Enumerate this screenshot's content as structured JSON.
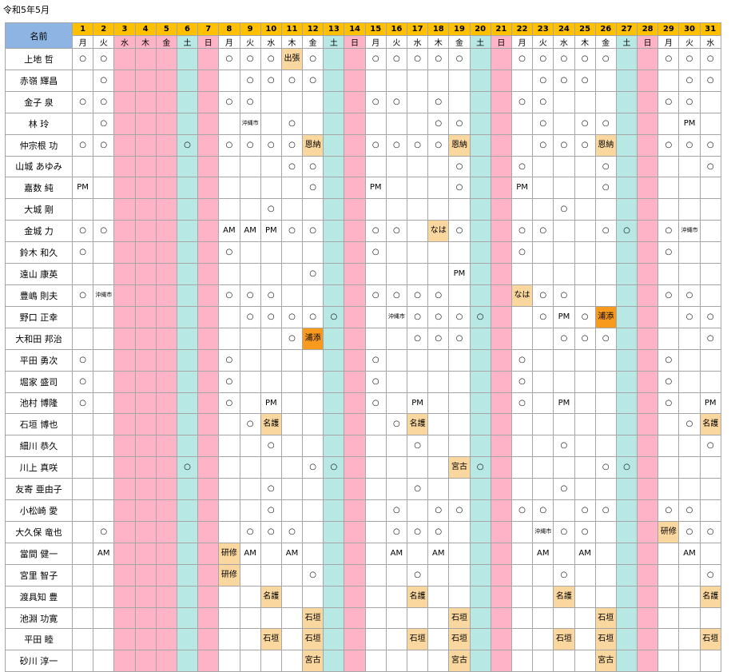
{
  "title": "令和5年5月",
  "header": {
    "name_label": "名前"
  },
  "days": [
    {
      "d": "1",
      "w": "月",
      "t": "day"
    },
    {
      "d": "2",
      "w": "火",
      "t": "day"
    },
    {
      "d": "3",
      "w": "水",
      "t": "hol"
    },
    {
      "d": "4",
      "w": "木",
      "t": "hol"
    },
    {
      "d": "5",
      "w": "金",
      "t": "hol"
    },
    {
      "d": "6",
      "w": "土",
      "t": "sat"
    },
    {
      "d": "7",
      "w": "日",
      "t": "sun"
    },
    {
      "d": "8",
      "w": "月",
      "t": "day"
    },
    {
      "d": "9",
      "w": "火",
      "t": "day"
    },
    {
      "d": "10",
      "w": "水",
      "t": "day"
    },
    {
      "d": "11",
      "w": "木",
      "t": "day"
    },
    {
      "d": "12",
      "w": "金",
      "t": "day"
    },
    {
      "d": "13",
      "w": "土",
      "t": "sat"
    },
    {
      "d": "14",
      "w": "日",
      "t": "sun"
    },
    {
      "d": "15",
      "w": "月",
      "t": "day"
    },
    {
      "d": "16",
      "w": "火",
      "t": "day"
    },
    {
      "d": "17",
      "w": "水",
      "t": "day"
    },
    {
      "d": "18",
      "w": "木",
      "t": "day"
    },
    {
      "d": "19",
      "w": "金",
      "t": "day"
    },
    {
      "d": "20",
      "w": "土",
      "t": "sat"
    },
    {
      "d": "21",
      "w": "日",
      "t": "sun"
    },
    {
      "d": "22",
      "w": "月",
      "t": "day"
    },
    {
      "d": "23",
      "w": "火",
      "t": "day"
    },
    {
      "d": "24",
      "w": "水",
      "t": "day"
    },
    {
      "d": "25",
      "w": "木",
      "t": "day"
    },
    {
      "d": "26",
      "w": "金",
      "t": "day"
    },
    {
      "d": "27",
      "w": "土",
      "t": "sat"
    },
    {
      "d": "28",
      "w": "日",
      "t": "sun"
    },
    {
      "d": "29",
      "w": "月",
      "t": "day"
    },
    {
      "d": "30",
      "w": "火",
      "t": "day"
    },
    {
      "d": "31",
      "w": "水",
      "t": "day"
    }
  ],
  "rows": [
    {
      "name": "上地 哲",
      "cells": {
        "1": "○",
        "2": "○",
        "8": "○",
        "9": "○",
        "10": "○",
        "11": "出張|tan",
        "12": "○",
        "15": "○",
        "16": "○",
        "17": "○",
        "18": "○",
        "19": "○",
        "22": "○",
        "23": "○",
        "24": "○",
        "25": "○",
        "26": "○",
        "29": "○",
        "30": "○",
        "31": "○"
      }
    },
    {
      "name": "赤嶺 輝昌",
      "cells": {
        "2": "○",
        "9": "○",
        "10": "○",
        "11": "○",
        "12": "○",
        "23": "○",
        "24": "○",
        "25": "○",
        "30": "○",
        "31": "○"
      }
    },
    {
      "name": "金子 泉",
      "cells": {
        "1": "○",
        "2": "○",
        "8": "○",
        "9": "○",
        "15": "○",
        "16": "○",
        "18": "○",
        "22": "○",
        "23": "○",
        "29": "○",
        "30": "○"
      }
    },
    {
      "name": "林 玲",
      "cells": {
        "2": "○",
        "9": "沖縄市|small",
        "11": "○",
        "18": "○",
        "19": "○",
        "23": "○",
        "25": "○",
        "26": "○",
        "30": "PM"
      }
    },
    {
      "name": "仲宗根 功",
      "cells": {
        "1": "○",
        "2": "○",
        "6": "○",
        "8": "○",
        "9": "○",
        "10": "○",
        "11": "○",
        "12": "恩納|tan",
        "15": "○",
        "16": "○",
        "17": "○",
        "18": "○",
        "19": "恩納|tan",
        "23": "○",
        "24": "○",
        "25": "○",
        "26": "恩納|tan",
        "29": "○",
        "30": "○",
        "31": "○"
      }
    },
    {
      "name": "山城 あゆみ",
      "cells": {
        "11": "○",
        "12": "○",
        "19": "○",
        "22": "○",
        "26": "○",
        "31": "○"
      }
    },
    {
      "name": "嘉数 純",
      "cells": {
        "1": "PM",
        "12": "○",
        "15": "PM",
        "19": "○",
        "22": "PM",
        "26": "○"
      }
    },
    {
      "name": "大城 剛",
      "cells": {
        "10": "○",
        "24": "○"
      }
    },
    {
      "name": "金城 力",
      "cells": {
        "1": "○",
        "2": "○",
        "8": "AM",
        "9": "AM",
        "10": "PM",
        "11": "○",
        "12": "○",
        "15": "○",
        "16": "○",
        "18": "なは|tan",
        "19": "○",
        "22": "○",
        "23": "○",
        "26": "○",
        "27": "○",
        "29": "○",
        "30": "沖縄市|small"
      }
    },
    {
      "name": "鈴木 和久",
      "cells": {
        "1": "○",
        "8": "○",
        "15": "○",
        "22": "○",
        "29": "○"
      }
    },
    {
      "name": "遠山 康英",
      "cells": {
        "12": "○",
        "19": "PM"
      }
    },
    {
      "name": "豊嶋 則夫",
      "cells": {
        "1": "○",
        "2": "沖縄市|small",
        "8": "○",
        "9": "○",
        "10": "○",
        "15": "○",
        "16": "○",
        "17": "○",
        "18": "○",
        "22": "なは|tan",
        "23": "○",
        "24": "○",
        "29": "○",
        "30": "○"
      }
    },
    {
      "name": "野口 正幸",
      "cells": {
        "9": "○",
        "10": "○",
        "11": "○",
        "12": "○",
        "13": "○",
        "16": "沖縄市|small",
        "17": "○",
        "18": "○",
        "19": "○",
        "20": "○",
        "23": "○",
        "24": "PM",
        "25": "○",
        "26": "浦添|orange",
        "30": "○",
        "31": "○"
      }
    },
    {
      "name": "大和田 邦治",
      "cells": {
        "11": "○",
        "12": "浦添|orange",
        "17": "○",
        "18": "○",
        "19": "○",
        "24": "○",
        "25": "○",
        "26": "○",
        "31": "○"
      }
    },
    {
      "name": "平田 勇次",
      "cells": {
        "1": "○",
        "8": "○",
        "15": "○",
        "22": "○",
        "29": "○"
      }
    },
    {
      "name": "堀家 盛司",
      "cells": {
        "1": "○",
        "8": "○",
        "15": "○",
        "22": "○",
        "29": "○"
      }
    },
    {
      "name": "池村 博隆",
      "cells": {
        "1": "○",
        "8": "○",
        "10": "PM",
        "15": "○",
        "17": "PM",
        "22": "○",
        "24": "PM",
        "29": "○",
        "31": "PM"
      }
    },
    {
      "name": "石垣 博也",
      "cells": {
        "9": "○",
        "10": "名護|tan",
        "16": "○",
        "17": "名護|tan",
        "30": "○",
        "31": "名護|tan"
      }
    },
    {
      "name": "細川 恭久",
      "cells": {
        "10": "○",
        "17": "○",
        "24": "○",
        "31": "○"
      }
    },
    {
      "name": "川上 真咲",
      "cells": {
        "6": "○",
        "12": "○",
        "13": "○",
        "19": "宮古|tan",
        "20": "○",
        "26": "○",
        "27": "○"
      }
    },
    {
      "name": "友寄 亜由子",
      "cells": {
        "10": "○",
        "17": "○",
        "24": "○"
      }
    },
    {
      "name": "小松崎 愛",
      "cells": {
        "10": "○",
        "16": "○",
        "18": "○",
        "19": "○",
        "22": "○",
        "23": "○",
        "25": "○",
        "26": "○",
        "29": "○",
        "30": "○"
      }
    },
    {
      "name": "大久保 竜也",
      "cells": {
        "2": "○",
        "9": "○",
        "10": "○",
        "11": "○",
        "16": "○",
        "17": "○",
        "18": "○",
        "23": "沖縄市|small",
        "24": "○",
        "25": "○",
        "29": "研修|tan",
        "30": "○",
        "31": "○"
      }
    },
    {
      "name": "當間 健一",
      "cells": {
        "2": "AM",
        "8": "研修|tan",
        "9": "AM",
        "11": "AM",
        "16": "AM",
        "18": "AM",
        "23": "AM",
        "25": "AM",
        "30": "AM"
      }
    },
    {
      "name": "宮里 智子",
      "cells": {
        "8": "研修|tan",
        "12": "○",
        "17": "○",
        "24": "○",
        "31": "○"
      }
    },
    {
      "name": "渡具知 豊",
      "cells": {
        "10": "名護|tan",
        "17": "名護|tan",
        "24": "名護|tan",
        "31": "名護|tan"
      }
    },
    {
      "name": "池淵 功寛",
      "cells": {
        "12": "石垣|tan",
        "19": "石垣|tan",
        "26": "石垣|tan"
      }
    },
    {
      "name": "平田 睦",
      "cells": {
        "10": "石垣|tan",
        "12": "石垣|tan",
        "17": "石垣|tan",
        "19": "石垣|tan",
        "24": "石垣|tan",
        "26": "石垣|tan",
        "31": "石垣|tan"
      }
    },
    {
      "name": "砂川 淳一",
      "cells": {
        "12": "宮古|tan",
        "19": "宮古|tan",
        "26": "宮古|tan"
      }
    }
  ]
}
